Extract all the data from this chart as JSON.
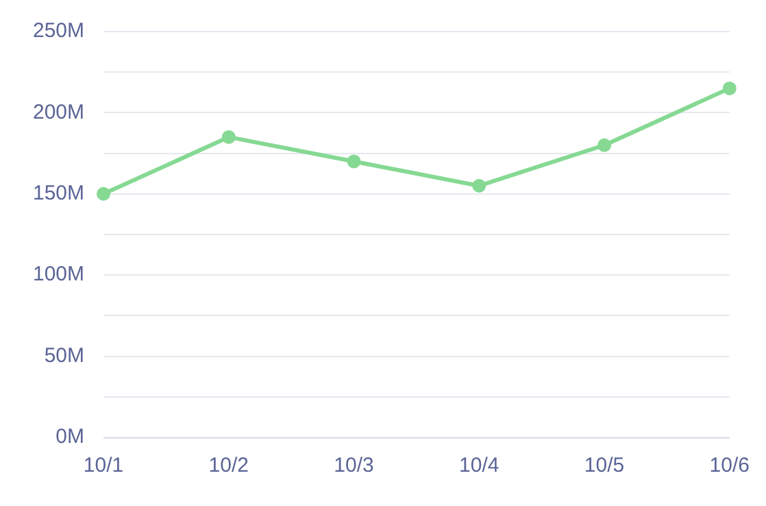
{
  "chart_data": {
    "type": "line",
    "categories": [
      "10/1",
      "10/2",
      "10/3",
      "10/4",
      "10/5",
      "10/6"
    ],
    "series": [
      {
        "color": "#86d993",
        "values": [
          150,
          185,
          170,
          155,
          180,
          215
        ]
      }
    ],
    "ylim": [
      0,
      250
    ],
    "yticks": [
      {
        "value": 0,
        "label": "0M"
      },
      {
        "value": 25,
        "label": null
      },
      {
        "value": 50,
        "label": "50M"
      },
      {
        "value": 75,
        "label": null
      },
      {
        "value": 100,
        "label": "100M"
      },
      {
        "value": 125,
        "label": null
      },
      {
        "value": 150,
        "label": "150M"
      },
      {
        "value": 175,
        "label": null
      },
      {
        "value": 200,
        "label": "200M"
      },
      {
        "value": 225,
        "label": null
      },
      {
        "value": 250,
        "label": "250M"
      }
    ],
    "grid": "y",
    "marker": "circle",
    "line_style": "solid",
    "legend": false
  }
}
